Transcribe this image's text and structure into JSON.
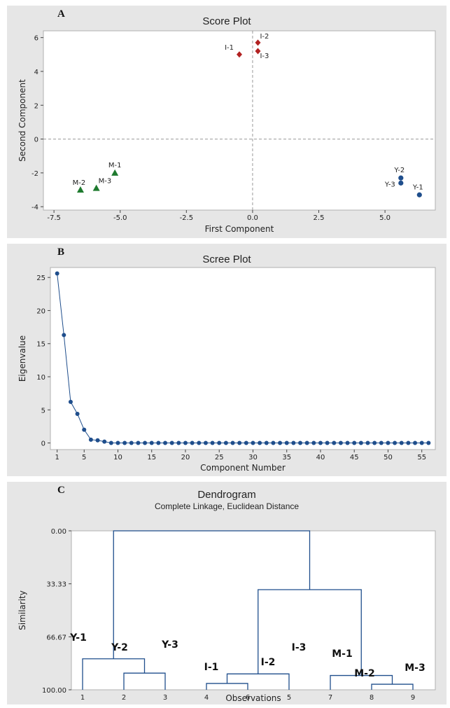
{
  "chart_data": [
    {
      "type": "scatter",
      "panel_label": "A",
      "title": "Score Plot",
      "xlabel": "First Component",
      "ylabel": "Second Component",
      "xlim": [
        -7.9,
        6.9
      ],
      "ylim": [
        -4.2,
        6.4
      ],
      "xticks": [
        -7.5,
        -5.0,
        -2.5,
        0.0,
        2.5,
        5.0
      ],
      "xtick_labels": [
        "-7.5",
        "-5.0",
        "-2.5",
        "0.0",
        "2.5",
        "5.0"
      ],
      "yticks": [
        -4,
        -2,
        0,
        2,
        4,
        6
      ],
      "ytick_labels": [
        "-4",
        "-2",
        "0",
        "2",
        "4",
        "6"
      ],
      "reference_lines": {
        "x": 0,
        "y": 0
      },
      "series": [
        {
          "color": "#b22222",
          "marker": "diamond",
          "points": [
            {
              "label": "I-1",
              "x": -0.5,
              "y": 5.0
            },
            {
              "label": "I-2",
              "x": 0.2,
              "y": 5.7
            },
            {
              "label": "I-3",
              "x": 0.2,
              "y": 5.2
            }
          ]
        },
        {
          "color": "#1e7a2e",
          "marker": "triangle",
          "points": [
            {
              "label": "M-1",
              "x": -5.2,
              "y": -2.0
            },
            {
              "label": "M-2",
              "x": -6.5,
              "y": -3.0
            },
            {
              "label": "M-3",
              "x": -5.9,
              "y": -2.9
            }
          ]
        },
        {
          "color": "#1f4e8c",
          "marker": "circle",
          "points": [
            {
              "label": "Y-1",
              "x": 6.3,
              "y": -3.3
            },
            {
              "label": "Y-2",
              "x": 5.6,
              "y": -2.3
            },
            {
              "label": "Y-3",
              "x": 5.6,
              "y": -2.6
            }
          ]
        }
      ]
    },
    {
      "type": "line",
      "panel_label": "B",
      "title": "Scree Plot",
      "xlabel": "Component Number",
      "ylabel": "Eigenvalue",
      "xlim": [
        0,
        57
      ],
      "ylim": [
        -1,
        26.5
      ],
      "xticks": [
        1,
        5,
        10,
        15,
        20,
        25,
        30,
        35,
        40,
        45,
        50,
        55
      ],
      "xtick_labels": [
        "1",
        "5",
        "10",
        "15",
        "20",
        "25",
        "30",
        "35",
        "40",
        "45",
        "50",
        "55"
      ],
      "yticks": [
        0,
        5,
        10,
        15,
        20,
        25
      ],
      "ytick_labels": [
        "0",
        "5",
        "10",
        "15",
        "20",
        "25"
      ],
      "color": "#1f4e8c",
      "x": [
        1,
        2,
        3,
        4,
        5,
        6,
        7,
        8,
        9,
        10,
        11,
        12,
        13,
        14,
        15,
        16,
        17,
        18,
        19,
        20,
        21,
        22,
        23,
        24,
        25,
        26,
        27,
        28,
        29,
        30,
        31,
        32,
        33,
        34,
        35,
        36,
        37,
        38,
        39,
        40,
        41,
        42,
        43,
        44,
        45,
        46,
        47,
        48,
        49,
        50,
        51,
        52,
        53,
        54,
        55,
        56
      ],
      "y": [
        25.6,
        16.3,
        6.2,
        4.4,
        2.0,
        0.5,
        0.4,
        0.2,
        0,
        0,
        0,
        0,
        0,
        0,
        0,
        0,
        0,
        0,
        0,
        0,
        0,
        0,
        0,
        0,
        0,
        0,
        0,
        0,
        0,
        0,
        0,
        0,
        0,
        0,
        0,
        0,
        0,
        0,
        0,
        0,
        0,
        0,
        0,
        0,
        0,
        0,
        0,
        0,
        0,
        0,
        0,
        0,
        0,
        0,
        0,
        0
      ]
    },
    {
      "type": "dendrogram",
      "panel_label": "C",
      "title": "Dendrogram",
      "subtitle": "Complete Linkage, Euclidean Distance",
      "xlabel": "Observations",
      "ylabel": "Similarity",
      "ylim": [
        0.0,
        100.0
      ],
      "yticks": [
        0.0,
        33.33,
        66.67,
        100.0
      ],
      "ytick_labels": [
        "0.00",
        "33.33",
        "66.67",
        "100.00"
      ],
      "xtick_labels": [
        "1",
        "2",
        "3",
        "4",
        "6",
        "5",
        "7",
        "8",
        "9"
      ],
      "leaf_names": [
        "Y-1",
        "Y-2",
        "Y-3",
        "I-1",
        "I-2",
        "I-3",
        "M-1",
        "M-2",
        "M-3"
      ],
      "color": "#1f4e8c",
      "merges": [
        {
          "left": 8,
          "right": 9,
          "similarity": 96.5
        },
        {
          "left": 2,
          "right": 3,
          "similarity": 89.5
        },
        {
          "left": 4,
          "right": 6,
          "similarity": 96.0
        },
        {
          "left": 7,
          "right": "M23",
          "similarity": 91.0
        },
        {
          "left": "I46",
          "right": 5,
          "similarity": 90.0
        },
        {
          "left": 1,
          "right": "Y23",
          "similarity": 80.5
        },
        {
          "left": "I",
          "right": "M",
          "similarity": 37.0
        },
        {
          "left": "Y",
          "right": "IM",
          "similarity": 0.0
        }
      ]
    }
  ]
}
